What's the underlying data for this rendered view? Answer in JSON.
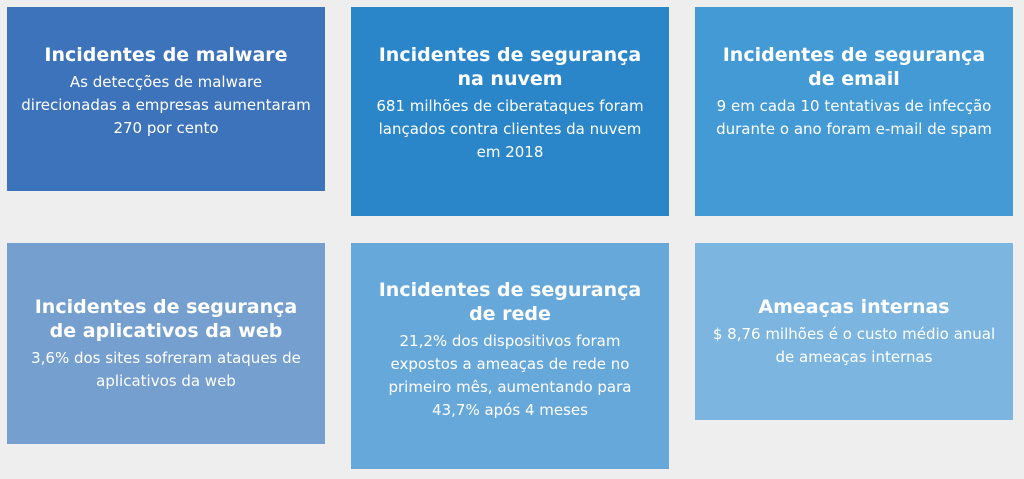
{
  "cards": [
    {
      "title": "Incidentes de malware",
      "description": "As detecções de malware direcionadas a empresas aumentaram 270 por cento",
      "color": "#3d73ba"
    },
    {
      "title": "Incidentes de segurança na nuvem",
      "description": "681 milhões de ciberataques foram lançados contra clientes da nuvem em 2018",
      "color": "#2a86c9"
    },
    {
      "title": "Incidentes de segurança de email",
      "description": "9 em cada 10 tentativas de infecção durante o ano foram e-mail de spam",
      "color": "#449ad5"
    },
    {
      "title": "Incidentes de segurança de aplicativos da web",
      "description": "3,6% dos sites sofreram ataques de aplicativos da web",
      "color": "#759fcf"
    },
    {
      "title": "Incidentes de segurança de rede",
      "description": "21,2% dos dispositivos foram expostos a ameaças de rede no primeiro mês, aumentando para 43,7% após 4 meses",
      "color": "#67a8da"
    },
    {
      "title": "Ameaças internas",
      "description": "$ 8,76 milhões é o custo médio anual de ameaças internas",
      "color": "#7cb5e0"
    }
  ]
}
